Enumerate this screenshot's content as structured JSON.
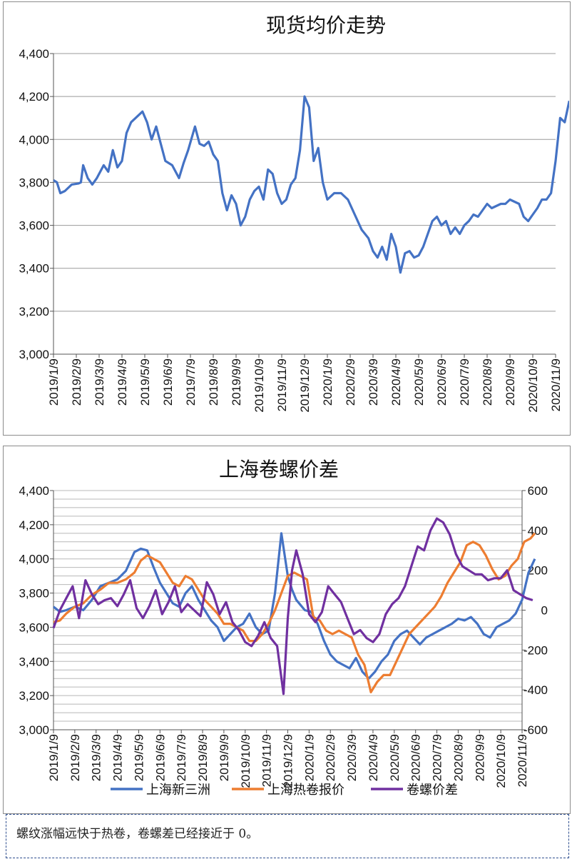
{
  "chart_data": [
    {
      "type": "line",
      "title": "现货均价走势",
      "xlabel": "",
      "ylabel": "",
      "ylim": [
        3000,
        4400
      ],
      "yticks": [
        "3,000",
        "3,200",
        "3,400",
        "3,600",
        "3,800",
        "4,000",
        "4,200",
        "4,400"
      ],
      "categories": [
        "2019/1/9",
        "2019/2/9",
        "2019/3/9",
        "2019/4/9",
        "2019/5/9",
        "2019/6/9",
        "2019/7/9",
        "2019/8/9",
        "2019/9/9",
        "2019/10/9",
        "2019/11/9",
        "2019/12/9",
        "2020/1/9",
        "2020/2/9",
        "2020/3/9",
        "2020/4/9",
        "2020/5/9",
        "2020/6/9",
        "2020/7/9",
        "2020/8/9",
        "2020/9/9",
        "2020/10/9",
        "2020/11/9"
      ],
      "grid": true,
      "series": [
        {
          "name": "",
          "color": "#4472C4",
          "x": [
            0,
            0.15,
            0.3,
            0.5,
            0.8,
            1.1,
            1.2,
            1.3,
            1.5,
            1.7,
            1.9,
            2.2,
            2.4,
            2.6,
            2.8,
            3.0,
            3.2,
            3.4,
            3.6,
            3.9,
            4.1,
            4.3,
            4.5,
            4.7,
            4.9,
            5.2,
            5.5,
            5.7,
            5.9,
            6.2,
            6.4,
            6.6,
            6.8,
            7.0,
            7.2,
            7.4,
            7.6,
            7.8,
            8.0,
            8.2,
            8.4,
            8.6,
            8.8,
            9.0,
            9.2,
            9.4,
            9.6,
            9.8,
            10.0,
            10.2,
            10.4,
            10.6,
            10.8,
            11.0,
            11.2,
            11.4,
            11.6,
            11.8,
            12.0,
            12.3,
            12.6,
            12.9,
            13.2,
            13.5,
            13.8,
            14.0,
            14.2,
            14.4,
            14.6,
            14.8,
            15.0,
            15.2,
            15.4,
            15.6,
            15.8,
            16.0,
            16.2,
            16.4,
            16.6,
            16.8,
            17.0,
            17.2,
            17.4,
            17.6,
            17.8,
            18.0,
            18.2,
            18.4,
            18.6,
            18.8,
            19.0,
            19.2,
            19.4,
            19.6,
            19.8,
            20.0,
            20.2,
            20.4,
            20.6,
            20.8,
            21.0,
            21.2,
            21.4,
            21.6,
            21.8,
            22.0,
            22.2,
            22.4,
            22.6
          ],
          "values": [
            3810,
            3800,
            3750,
            3760,
            3790,
            3795,
            3800,
            3880,
            3820,
            3790,
            3820,
            3880,
            3850,
            3950,
            3870,
            3900,
            4030,
            4080,
            4100,
            4130,
            4080,
            4000,
            4060,
            3980,
            3900,
            3880,
            3820,
            3890,
            3950,
            4060,
            3980,
            3970,
            3990,
            3930,
            3900,
            3750,
            3670,
            3740,
            3700,
            3600,
            3640,
            3720,
            3760,
            3780,
            3720,
            3860,
            3840,
            3750,
            3700,
            3720,
            3790,
            3820,
            3950,
            4200,
            4150,
            3900,
            3960,
            3800,
            3720,
            3750,
            3750,
            3720,
            3650,
            3580,
            3540,
            3480,
            3450,
            3500,
            3440,
            3560,
            3500,
            3380,
            3470,
            3480,
            3450,
            3460,
            3500,
            3560,
            3620,
            3640,
            3600,
            3620,
            3560,
            3590,
            3560,
            3600,
            3620,
            3650,
            3640,
            3670,
            3700,
            3680,
            3690,
            3700,
            3700,
            3720,
            3710,
            3700,
            3640,
            3620,
            3650,
            3680,
            3720,
            3720,
            3750,
            3900,
            4100,
            4080,
            4180
          ]
        }
      ]
    },
    {
      "type": "line",
      "title": "上海卷螺价差",
      "xlabel": "",
      "ylabel": "",
      "ylim": [
        3000,
        4400
      ],
      "y2lim": [
        -600,
        600
      ],
      "yticks": [
        "3,000",
        "3,200",
        "3,400",
        "3,600",
        "3,800",
        "4,000",
        "4,200",
        "4,400"
      ],
      "y2ticks": [
        "-600",
        "-400",
        "-200",
        "0",
        "200",
        "400",
        "600"
      ],
      "categories": [
        "2019/1/9",
        "2019/2/9",
        "2019/3/9",
        "2019/4/9",
        "2019/5/9",
        "2019/6/9",
        "2019/7/9",
        "2019/8/9",
        "2019/9/9",
        "2019/10/9",
        "2019/11/9",
        "2019/12/9",
        "2020/1/9",
        "2020/2/9",
        "2020/3/9",
        "2020/4/9",
        "2020/5/9",
        "2020/6/9",
        "2020/7/9",
        "2020/8/9",
        "2020/9/9",
        "2020/10/9",
        "2020/11/9"
      ],
      "grid": true,
      "legend": "bottom",
      "series": [
        {
          "name": "上海新三洲",
          "axis": "left",
          "color": "#4472C4",
          "x": [
            0,
            0.3,
            0.6,
            1.0,
            1.4,
            1.8,
            2.2,
            2.6,
            3.0,
            3.4,
            3.8,
            4.1,
            4.4,
            4.7,
            5.0,
            5.3,
            5.6,
            5.9,
            6.2,
            6.5,
            6.8,
            7.1,
            7.4,
            7.7,
            8.0,
            8.3,
            8.6,
            8.9,
            9.2,
            9.5,
            9.8,
            10.1,
            10.4,
            10.7,
            11.0,
            11.2,
            11.4,
            11.6,
            11.8,
            12.1,
            12.4,
            12.7,
            13.0,
            13.3,
            13.6,
            13.9,
            14.2,
            14.5,
            14.8,
            15.1,
            15.4,
            15.7,
            16.0,
            16.3,
            16.6,
            16.9,
            17.2,
            17.5,
            17.8,
            18.1,
            18.4,
            18.7,
            19.0,
            19.3,
            19.6,
            19.9,
            20.2,
            20.5,
            20.8,
            21.1,
            21.4,
            21.7,
            22.0,
            22.3,
            22.6
          ],
          "values": [
            3720,
            3690,
            3700,
            3720,
            3700,
            3760,
            3840,
            3860,
            3880,
            3930,
            4040,
            4060,
            4050,
            3950,
            3860,
            3800,
            3740,
            3720,
            3800,
            3840,
            3760,
            3700,
            3640,
            3600,
            3520,
            3560,
            3600,
            3620,
            3680,
            3600,
            3560,
            3580,
            3800,
            4150,
            3900,
            3820,
            3760,
            3730,
            3700,
            3690,
            3620,
            3520,
            3440,
            3400,
            3380,
            3360,
            3420,
            3340,
            3300,
            3340,
            3400,
            3440,
            3520,
            3560,
            3580,
            3540,
            3500,
            3540,
            3560,
            3580,
            3600,
            3620,
            3650,
            3640,
            3660,
            3620,
            3560,
            3540,
            3600,
            3620,
            3640,
            3680,
            3760,
            3920,
            4000
          ]
        },
        {
          "name": "上海热卷报价",
          "axis": "left",
          "color": "#ED7D31",
          "x": [
            0,
            0.3,
            0.6,
            1.0,
            1.4,
            1.8,
            2.2,
            2.6,
            3.0,
            3.4,
            3.8,
            4.1,
            4.4,
            4.7,
            5.0,
            5.3,
            5.6,
            5.9,
            6.2,
            6.5,
            6.8,
            7.1,
            7.4,
            7.7,
            8.0,
            8.3,
            8.6,
            8.9,
            9.2,
            9.5,
            9.8,
            10.1,
            10.4,
            10.7,
            11.0,
            11.3,
            11.6,
            11.9,
            12.2,
            12.5,
            12.8,
            13.1,
            13.4,
            13.7,
            14.0,
            14.3,
            14.6,
            14.9,
            15.2,
            15.5,
            15.8,
            16.1,
            16.4,
            16.7,
            17.0,
            17.3,
            17.6,
            17.9,
            18.2,
            18.5,
            18.8,
            19.1,
            19.4,
            19.7,
            20.0,
            20.3,
            20.6,
            20.9,
            21.2,
            21.5,
            21.8,
            22.1,
            22.4,
            22.6
          ],
          "values": [
            3630,
            3640,
            3680,
            3720,
            3740,
            3790,
            3820,
            3860,
            3860,
            3880,
            3920,
            3990,
            4020,
            4000,
            3980,
            3920,
            3860,
            3840,
            3900,
            3880,
            3820,
            3760,
            3720,
            3680,
            3620,
            3620,
            3600,
            3580,
            3520,
            3520,
            3560,
            3620,
            3700,
            3800,
            3900,
            3920,
            3900,
            3880,
            3660,
            3640,
            3580,
            3560,
            3580,
            3560,
            3540,
            3440,
            3380,
            3220,
            3280,
            3320,
            3320,
            3400,
            3480,
            3560,
            3600,
            3640,
            3680,
            3720,
            3780,
            3860,
            3920,
            3980,
            4080,
            4100,
            4080,
            4020,
            3940,
            3880,
            3900,
            3960,
            4000,
            4100,
            4120,
            4150
          ]
        },
        {
          "name": "卷螺价差",
          "axis": "right",
          "color": "#7030A0",
          "x": [
            0,
            0.3,
            0.6,
            0.9,
            1.2,
            1.5,
            1.8,
            2.1,
            2.4,
            2.7,
            3.0,
            3.3,
            3.6,
            3.9,
            4.2,
            4.5,
            4.8,
            5.1,
            5.4,
            5.7,
            6.0,
            6.3,
            6.6,
            6.9,
            7.2,
            7.5,
            7.8,
            8.1,
            8.4,
            8.7,
            9.0,
            9.3,
            9.6,
            9.9,
            10.2,
            10.5,
            10.8,
            11.0,
            11.2,
            11.4,
            11.7,
            12.0,
            12.3,
            12.6,
            12.9,
            13.2,
            13.5,
            13.8,
            14.1,
            14.4,
            14.7,
            15.0,
            15.3,
            15.6,
            15.9,
            16.2,
            16.5,
            16.8,
            17.1,
            17.4,
            17.7,
            18.0,
            18.3,
            18.6,
            18.9,
            19.2,
            19.5,
            19.8,
            20.1,
            20.4,
            20.7,
            21.0,
            21.3,
            21.6,
            21.9,
            22.2,
            22.5
          ],
          "values": [
            -90,
            0,
            60,
            120,
            -40,
            150,
            80,
            30,
            50,
            60,
            20,
            80,
            150,
            10,
            -40,
            20,
            100,
            -20,
            40,
            120,
            -10,
            30,
            0,
            -30,
            140,
            80,
            -20,
            40,
            -60,
            -100,
            -160,
            -180,
            -130,
            -60,
            -140,
            -180,
            -420,
            -40,
            200,
            300,
            180,
            -20,
            -60,
            -10,
            120,
            80,
            40,
            -40,
            -120,
            -100,
            -140,
            -160,
            -120,
            -20,
            30,
            60,
            120,
            220,
            320,
            300,
            400,
            460,
            440,
            380,
            280,
            220,
            200,
            180,
            180,
            150,
            160,
            160,
            200,
            100,
            80,
            60,
            50
          ]
        }
      ]
    }
  ],
  "note": {
    "text": "螺纹涨幅远快于热卷，卷螺差已经接近于 0。"
  }
}
